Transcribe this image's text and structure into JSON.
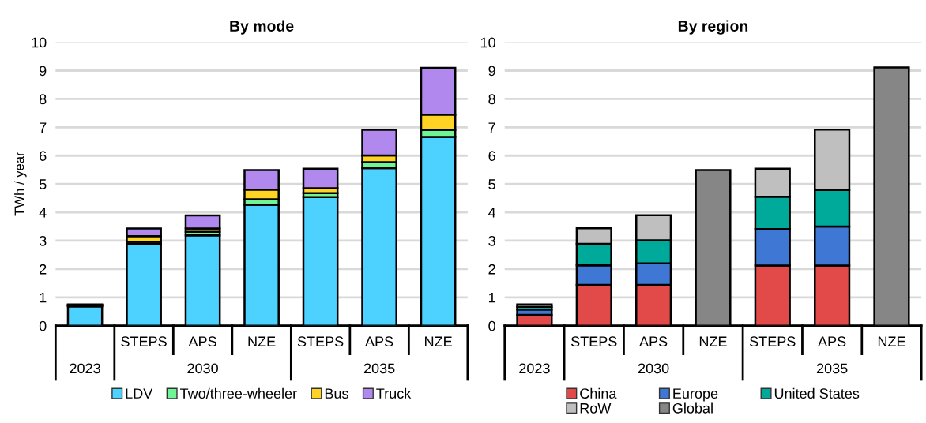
{
  "chart_data": [
    {
      "type": "bar",
      "title": "By mode",
      "ylabel": "TWh / year",
      "categories": [
        null,
        "STEPS",
        "APS",
        "NZE",
        "STEPS",
        "APS",
        "NZE"
      ],
      "annotations": [
        "2023",
        "2030",
        "2035"
      ],
      "stacked": true,
      "grid": "y",
      "legend": "bottom",
      "ylim": [
        0,
        10
      ],
      "yticks": [
        0,
        1,
        2,
        3,
        4,
        5,
        6,
        7,
        8,
        9,
        10
      ],
      "series": [
        {
          "name": "LDV",
          "color": "#4dd2ff",
          "values": [
            0.68,
            2.88,
            3.19,
            4.27,
            4.54,
            5.56,
            6.66
          ]
        },
        {
          "name": "Two/three-wheeler",
          "color": "#6ef594",
          "values": [
            0.04,
            0.08,
            0.12,
            0.19,
            0.14,
            0.21,
            0.25
          ]
        },
        {
          "name": "Bus",
          "color": "#ffd324",
          "values": [
            0.01,
            0.2,
            0.12,
            0.34,
            0.17,
            0.24,
            0.54
          ]
        },
        {
          "name": "Truck",
          "color": "#b088ee",
          "values": [
            0.02,
            0.27,
            0.46,
            0.69,
            0.69,
            0.9,
            1.65
          ]
        }
      ]
    },
    {
      "type": "bar",
      "title": "By region",
      "categories": [
        null,
        "STEPS",
        "APS",
        "NZE",
        "STEPS",
        "APS",
        "NZE"
      ],
      "annotations": [
        "2023",
        "2030",
        "2035"
      ],
      "stacked": true,
      "grid": "y",
      "legend": "bottom",
      "ylim": [
        0,
        10
      ],
      "yticks": [
        0,
        1,
        2,
        3,
        4,
        5,
        6,
        7,
        8,
        9,
        10
      ],
      "series": [
        {
          "name": "China",
          "color": "#e24a4a",
          "values": [
            0.38,
            1.44,
            1.44,
            null,
            2.12,
            2.12,
            null
          ]
        },
        {
          "name": "Europe",
          "color": "#3f78d4",
          "values": [
            0.19,
            0.69,
            0.76,
            null,
            1.29,
            1.38,
            null
          ]
        },
        {
          "name": "United States",
          "color": "#00aa9b",
          "values": [
            0.1,
            0.76,
            0.81,
            null,
            1.14,
            1.29,
            null
          ]
        },
        {
          "name": "RoW",
          "color": "#bfbfbf",
          "values": [
            0.08,
            0.55,
            0.89,
            null,
            0.99,
            2.13,
            null
          ]
        },
        {
          "name": "Global",
          "color": "#868686",
          "values": [
            null,
            null,
            null,
            5.49,
            null,
            null,
            9.11
          ]
        }
      ]
    }
  ]
}
